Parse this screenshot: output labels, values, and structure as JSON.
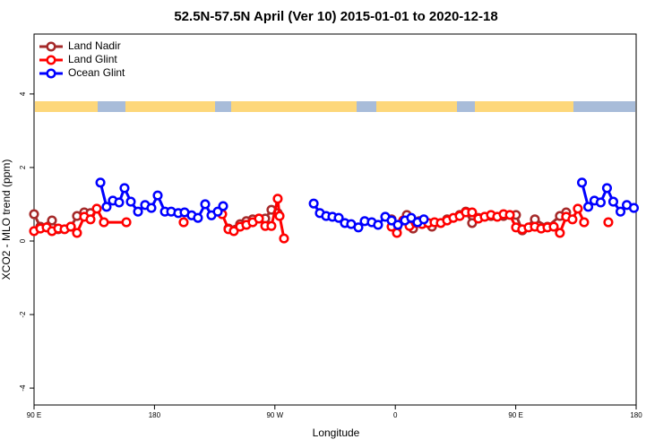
{
  "chart_data": {
    "type": "line",
    "title": "52.5N-57.5N April (Ver 10)   2015-01-01 to 2020-12-18",
    "x_label": "Longitude",
    "y_label": "XCO2 - MLO trend (ppm)",
    "xlim": [
      90,
      540
    ],
    "ylim": [
      -4.46,
      5.63
    ],
    "xticks": [
      {
        "value": 90,
        "label": "90 E"
      },
      180,
      {
        "value": 270,
        "label": "90 W"
      },
      {
        "value": 360,
        "label": "0"
      },
      {
        "value": 450,
        "label": "90 E"
      },
      {
        "value": 540,
        "label": "180"
      }
    ],
    "yticks": [
      -4,
      -2,
      0,
      2,
      4
    ],
    "legend": "top-left",
    "series": [
      {
        "name": "Land Nadir",
        "color": "#a52a2a",
        "x": [
          90,
          94.7,
          103.4,
          108.1,
          117.5,
          122.1,
          127.5,
          132.2,
          null,
          235.3,
          244,
          248.7,
          253.4,
          258.1,
          262.8,
          267.4,
          272.1,
          null,
          357.2,
          361.2,
          368.6,
          373.3,
          378,
          387.4,
          398.7,
          408.1,
          412.7,
          417.4,
          422.1,
          431.5,
          440.9,
          450.2,
          454.9,
          464.3,
          473.7,
          483,
          487.7
        ],
        "values": [
          0.73,
          0.39,
          0.56,
          0.32,
          0.39,
          0.68,
          0.78,
          0.76,
          null,
          0.34,
          0.46,
          0.54,
          0.59,
          0.61,
          0.61,
          0.85,
          0.76,
          null,
          0.59,
          0.37,
          0.71,
          0.34,
          0.54,
          0.39,
          0.59,
          0.71,
          0.8,
          0.49,
          0.63,
          0.68,
          0.68,
          0.71,
          0.29,
          0.59,
          0.39,
          0.68,
          0.78
        ]
      },
      {
        "name": "Land Glint",
        "color": "#ff0000",
        "x": [
          90,
          94.7,
          99.4,
          103.4,
          108.1,
          112.8,
          117.5,
          122.1,
          127.5,
          132.2,
          136.9,
          142.2,
          159,
          null,
          201.8,
          null,
          230.6,
          235.3,
          239.3,
          244,
          248.7,
          253.4,
          258.1,
          262.8,
          267.4,
          272.1,
          273.5,
          276.8,
          null,
          357.2,
          361.2,
          365.9,
          370.6,
          375.3,
          380,
          384.6,
          389.3,
          394,
          398.7,
          403.4,
          408.1,
          412.7,
          417.4,
          422.1,
          426.8,
          431.5,
          436.2,
          440.9,
          445.6,
          450.2,
          454.9,
          459.6,
          464.3,
          469,
          473.7,
          478.4,
          483,
          487.7,
          492.4,
          496.4,
          501.1,
          null,
          519.2
        ],
        "values": [
          0.27,
          0.34,
          0.37,
          0.27,
          0.34,
          0.32,
          0.39,
          0.22,
          0.66,
          0.59,
          0.88,
          0.51,
          0.51,
          null,
          0.51,
          null,
          0.73,
          0.32,
          0.27,
          0.39,
          0.44,
          0.51,
          0.61,
          0.41,
          0.41,
          1.15,
          0.68,
          0.07,
          null,
          0.39,
          0.22,
          0.56,
          0.41,
          0.49,
          0.46,
          0.49,
          0.51,
          0.49,
          0.56,
          0.63,
          0.68,
          0.78,
          0.78,
          0.61,
          0.66,
          0.71,
          0.66,
          0.73,
          0.71,
          0.37,
          0.32,
          0.37,
          0.39,
          0.34,
          0.37,
          0.39,
          0.22,
          0.66,
          0.59,
          0.88,
          0.51,
          null,
          0.51
        ]
      },
      {
        "name": "Ocean Glint",
        "color": "#0000ff",
        "x": [
          139.6,
          144.2,
          148.9,
          153.6,
          157.6,
          162.3,
          167.7,
          173,
          177.7,
          182.4,
          187.8,
          192.5,
          197.8,
          202.5,
          207.8,
          212.5,
          217.9,
          222.6,
          227.3,
          231.3,
          null,
          299,
          303.6,
          308.3,
          313,
          317.7,
          322.3,
          327,
          332.4,
          337.1,
          342.4,
          347.1,
          352.5,
          357.2,
          361.9,
          367.2,
          371.9,
          376.6,
          381.3,
          null,
          499.5,
          504.2,
          508.8,
          513.5,
          518.2,
          522.9,
          528.3,
          533,
          538.3
        ],
        "values": [
          1.59,
          0.93,
          1.1,
          1.05,
          1.44,
          1.07,
          0.8,
          0.98,
          0.9,
          1.24,
          0.8,
          0.8,
          0.76,
          0.78,
          0.7,
          0.63,
          1.0,
          0.7,
          0.8,
          0.95,
          null,
          1.02,
          0.76,
          0.68,
          0.66,
          0.63,
          0.49,
          0.46,
          0.37,
          0.54,
          0.51,
          0.44,
          0.66,
          0.56,
          0.44,
          0.56,
          0.63,
          0.51,
          0.59,
          null,
          1.59,
          0.93,
          1.1,
          1.05,
          1.44,
          1.07,
          0.8,
          0.98,
          0.9
        ]
      }
    ]
  }
}
